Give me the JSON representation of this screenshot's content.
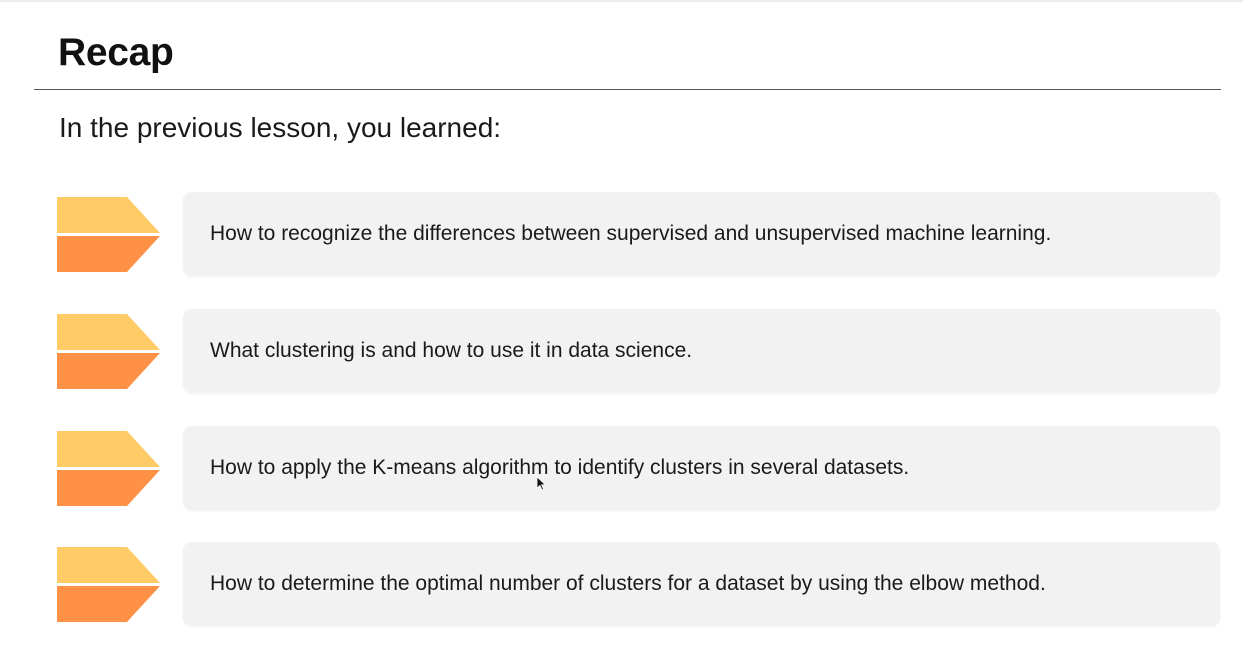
{
  "slide": {
    "title": "Recap",
    "subtitle": "In the previous lesson, you learned:"
  },
  "recap_items": [
    {
      "text": "How to recognize the differences between supervised and unsupervised machine learning."
    },
    {
      "text": "What clustering is and how to use it in data science."
    },
    {
      "text": "How to apply the K-means algorithm to identify clusters in several datasets."
    },
    {
      "text": "How to determine the optimal number of clusters for a dataset by using the elbow method."
    }
  ],
  "icons": {
    "bullet": "chevron-arrow-icon",
    "pointer": "mouse-cursor-icon"
  },
  "colors": {
    "arrow_top": "#FFCB66",
    "arrow_bottom": "#FF9147",
    "card_background": "#F2F2F2",
    "rule": "#555555"
  }
}
